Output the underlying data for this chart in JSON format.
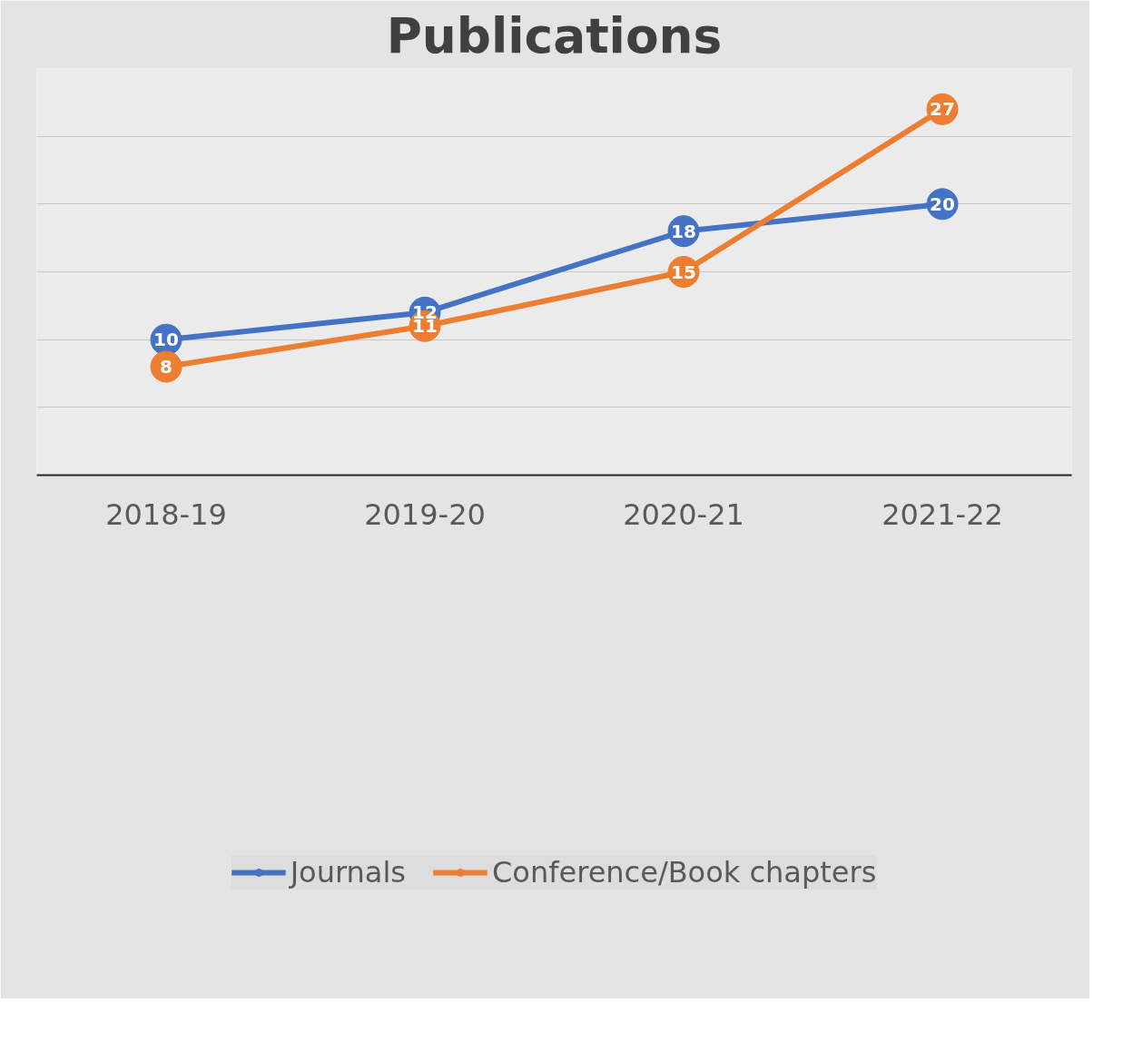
{
  "chart_data": {
    "type": "line",
    "title": "Publications",
    "categories": [
      "2018-19",
      "2019-20",
      "2020-21",
      "2021-22"
    ],
    "series": [
      {
        "name": "Journals",
        "color": "#4472c4",
        "values": [
          10,
          12,
          18,
          20
        ]
      },
      {
        "name": "Conference/Book chapters",
        "color": "#ed7d31",
        "values": [
          8,
          11,
          15,
          27
        ]
      }
    ],
    "ylim": [
      0,
      30
    ],
    "yticks": [
      {
        "value": 0,
        "label": null
      },
      {
        "value": 5,
        "label": null
      },
      {
        "value": 10,
        "label": null
      },
      {
        "value": 15,
        "label": null
      },
      {
        "value": 20,
        "label": null
      },
      {
        "value": 25,
        "label": null
      },
      {
        "value": 30,
        "label": null
      }
    ],
    "tick_labels": "x",
    "grid": "y",
    "legend": "bottom",
    "marker": "circle",
    "line_style": "solid",
    "data_labels": true
  }
}
